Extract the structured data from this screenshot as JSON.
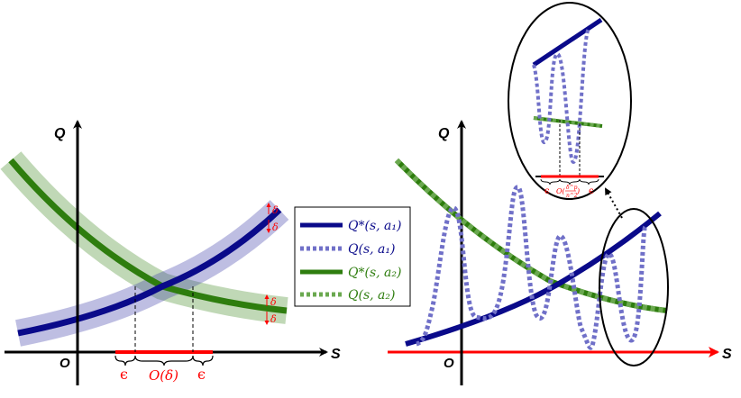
{
  "left_panel": {
    "y_axis_label": "Q",
    "x_axis_label": "S",
    "origin_label": "O",
    "epsilon_left": "ϵ",
    "big_o_label": "O(δ)",
    "epsilon_right": "ϵ",
    "delta_upper_a": "δ",
    "delta_upper_b": "δ",
    "delta_lower_a": "δ",
    "delta_lower_b": "δ"
  },
  "right_panel": {
    "y_axis_label": "Q",
    "x_axis_label": "S",
    "origin_label": "O",
    "inset": {
      "epsilon_left": "ϵ",
      "big_o_prefix": "O(",
      "frac_num": "δ^p",
      "frac_den": "n^2",
      "big_o_suffix": ")",
      "epsilon_right": "ϵ"
    }
  },
  "legend": {
    "items": [
      {
        "label": "Q*(s, a₁)",
        "style": "solid",
        "color": "#0a0a8a"
      },
      {
        "label": "Q(s, a₁)",
        "style": "dotted",
        "color": "#7070c8"
      },
      {
        "label": "Q*(s, a₂)",
        "style": "solid",
        "color": "#2e7d0e"
      },
      {
        "label": "Q(s, a₂)",
        "style": "dotted",
        "color": "#6aa84f"
      }
    ]
  },
  "colors": {
    "navy": "#0a0a8a",
    "lavender": "#7070c8",
    "green": "#2e7d0e",
    "light_green": "#6aa84f",
    "red": "#ff0000"
  }
}
